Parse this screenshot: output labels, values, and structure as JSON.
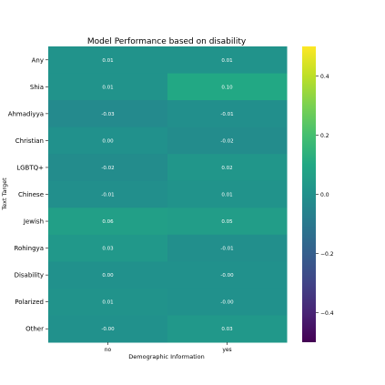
{
  "chart_data": {
    "type": "heatmap",
    "title": "Model Performance based on disability",
    "xlabel": "Demographic Information",
    "ylabel": "Text Target",
    "x_categories": [
      "no",
      "yes"
    ],
    "y_categories": [
      "Any",
      "Shia",
      "Ahmadiyya",
      "Christian",
      "LGBTQ+",
      "Chinese",
      "Jewish",
      "Rohingya",
      "Disability",
      "Polarized",
      "Other"
    ],
    "values": [
      [
        0.01,
        0.01
      ],
      [
        0.01,
        0.1
      ],
      [
        -0.03,
        -0.01
      ],
      [
        0.0,
        -0.02
      ],
      [
        -0.02,
        0.02
      ],
      [
        -0.01,
        0.01
      ],
      [
        0.06,
        0.05
      ],
      [
        0.03,
        -0.01
      ],
      [
        0.0,
        -0.0
      ],
      [
        0.01,
        -0.0
      ],
      [
        -0.0,
        0.03
      ]
    ],
    "cell_labels": [
      [
        "0.01",
        "0.01"
      ],
      [
        "0.01",
        "0.10"
      ],
      [
        "-0.03",
        "-0.01"
      ],
      [
        "0.00",
        "-0.02"
      ],
      [
        "-0.02",
        "0.02"
      ],
      [
        "-0.01",
        "0.01"
      ],
      [
        "0.06",
        "0.05"
      ],
      [
        "0.03",
        "-0.01"
      ],
      [
        "0.00",
        "-0.00"
      ],
      [
        "0.01",
        "-0.00"
      ],
      [
        "-0.00",
        "0.03"
      ]
    ],
    "colormap": "viridis",
    "vmin": -0.5,
    "vmax": 0.5,
    "colorbar_ticks": [
      0.4,
      0.2,
      0.0,
      -0.2,
      -0.4
    ],
    "colorbar_tick_labels": [
      "0.4",
      "0.2",
      "0.0",
      "−0.2",
      "−0.4"
    ]
  }
}
